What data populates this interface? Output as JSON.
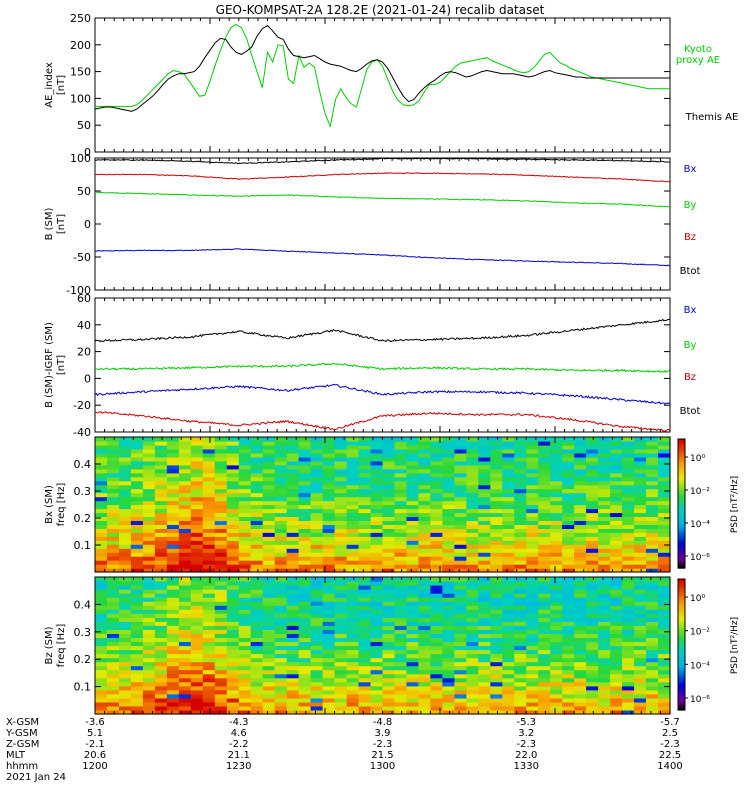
{
  "title": "GEO-KOMPSAT-2A 128.2E (2021-01-24) recalib dataset",
  "colors": {
    "black": "#000000",
    "green": "#00cc00",
    "red": "#cc0000",
    "blue": "#0000cc"
  },
  "chart_data": [
    {
      "type": "line",
      "ylabel": [
        "AE_index",
        "[nT]"
      ],
      "ylim": [
        0,
        250
      ],
      "yticks": [
        0,
        50,
        100,
        150,
        200,
        250
      ],
      "x": [
        0,
        6,
        12,
        18,
        24,
        30,
        36,
        42,
        48,
        54,
        60,
        66,
        72,
        78,
        84,
        90,
        96,
        102,
        108,
        114,
        120,
        126,
        132,
        138,
        144,
        150,
        156,
        162,
        168,
        174,
        180,
        186,
        192,
        198,
        204,
        210,
        216,
        222,
        228,
        234,
        240,
        246,
        252,
        258,
        264,
        270,
        276,
        282,
        288,
        294,
        300,
        306,
        312,
        318,
        324,
        330,
        336,
        342,
        348,
        354,
        360,
        366,
        372,
        378,
        384,
        390,
        396,
        402,
        408,
        414,
        420,
        426,
        432,
        438,
        444,
        450,
        456,
        462,
        468,
        474,
        480,
        486,
        492,
        498,
        504,
        510,
        516,
        522,
        528,
        534,
        540,
        546,
        552,
        558,
        564,
        570,
        576,
        582,
        588,
        594,
        600,
        606,
        612,
        618,
        624,
        630,
        636,
        642,
        648,
        654,
        660
      ],
      "series": [
        {
          "name": "Kyoto proxy AE",
          "color": "#00cc00",
          "label_lines": [
            "Kyoto",
            "proxy AE"
          ],
          "values": [
            85,
            85,
            85,
            85,
            85,
            85,
            85,
            85,
            88,
            96,
            106,
            116,
            126,
            136,
            146,
            152,
            150,
            146,
            132,
            118,
            104,
            106,
            132,
            162,
            190,
            214,
            232,
            238,
            232,
            212,
            180,
            150,
            120,
            186,
            168,
            200,
            198,
            136,
            128,
            180,
            158,
            166,
            158,
            112,
            72,
            48,
            98,
            118,
            102,
            90,
            84,
            118,
            154,
            168,
            172,
            160,
            136,
            112,
            96,
            88,
            86,
            88,
            96,
            112,
            126,
            126,
            130,
            140,
            150,
            160,
            166,
            168,
            170,
            172,
            174,
            176,
            170,
            166,
            162,
            158,
            154,
            150,
            148,
            150,
            158,
            170,
            182,
            186,
            176,
            166,
            162,
            156,
            152,
            148,
            144,
            140,
            138,
            136,
            134,
            132,
            130,
            128,
            126,
            124,
            122,
            120,
            118,
            118,
            118,
            118,
            118
          ]
        },
        {
          "name": "Themis AE",
          "color": "#000000",
          "label_lines": [
            "Themis AE"
          ],
          "values": [
            80,
            82,
            84,
            84,
            82,
            80,
            78,
            76,
            80,
            88,
            96,
            104,
            114,
            126,
            136,
            142,
            146,
            146,
            148,
            150,
            160,
            176,
            190,
            204,
            212,
            210,
            196,
            186,
            182,
            188,
            196,
            216,
            230,
            236,
            226,
            214,
            210,
            192,
            180,
            178,
            176,
            178,
            180,
            174,
            168,
            164,
            162,
            160,
            156,
            152,
            150,
            156,
            164,
            170,
            172,
            168,
            156,
            138,
            120,
            104,
            94,
            98,
            110,
            120,
            128,
            134,
            142,
            148,
            150,
            148,
            144,
            140,
            142,
            146,
            150,
            152,
            150,
            148,
            146,
            146,
            146,
            144,
            142,
            140,
            142,
            146,
            150,
            152,
            148,
            146,
            144,
            142,
            140,
            140,
            138,
            138,
            138,
            138,
            138,
            138,
            138,
            138,
            138,
            138,
            138,
            138,
            138,
            138,
            138,
            138,
            138
          ]
        }
      ]
    },
    {
      "type": "line",
      "ylabel": [
        "B (SM)",
        "[nT]"
      ],
      "ylim": [
        -100,
        100
      ],
      "yticks": [
        -100,
        -50,
        0,
        50,
        100
      ],
      "x": [
        0,
        55,
        110,
        165,
        220,
        275,
        330,
        385,
        440,
        495,
        550,
        605,
        660
      ],
      "series": [
        {
          "name": "Bx",
          "color": "#0000cc",
          "values": [
            -41,
            -40,
            -40,
            -38,
            -41,
            -44,
            -47,
            -51,
            -54,
            -56,
            -58,
            -60,
            -63
          ]
        },
        {
          "name": "By",
          "color": "#00cc00",
          "values": [
            48,
            46,
            44,
            42,
            44,
            41,
            39,
            38,
            37,
            35,
            32,
            30,
            26
          ]
        },
        {
          "name": "Bz",
          "color": "#cc0000",
          "values": [
            75,
            75,
            73,
            68,
            71,
            75,
            77,
            77,
            76,
            74,
            71,
            68,
            64
          ]
        },
        {
          "name": "Btot",
          "color": "#000000",
          "values": [
            97,
            97,
            95,
            92,
            94,
            97,
            99,
            99,
            99,
            98,
            97,
            96,
            94
          ]
        }
      ]
    },
    {
      "type": "line",
      "ylabel": [
        "B (SM)-IGRF (SM)",
        "[nT]"
      ],
      "ylim": [
        -40,
        60
      ],
      "yticks": [
        -40,
        -20,
        0,
        20,
        40,
        60
      ],
      "x": [
        0,
        55,
        110,
        165,
        220,
        275,
        330,
        385,
        440,
        495,
        550,
        605,
        660
      ],
      "series": [
        {
          "name": "Bx",
          "color": "#0000cc",
          "values": [
            -12,
            -10,
            -8,
            -6,
            -9,
            -5,
            -12,
            -10,
            -10,
            -11,
            -13,
            -16,
            -19
          ]
        },
        {
          "name": "By",
          "color": "#00cc00",
          "values": [
            7,
            7,
            8,
            9,
            9,
            11,
            7,
            8,
            7,
            7,
            6,
            6,
            5
          ]
        },
        {
          "name": "Bz",
          "color": "#cc0000",
          "values": [
            -25,
            -28,
            -32,
            -35,
            -32,
            -38,
            -28,
            -26,
            -27,
            -27,
            -31,
            -36,
            -39
          ]
        },
        {
          "name": "Btot",
          "color": "#000000",
          "values": [
            28,
            29,
            31,
            35,
            30,
            36,
            28,
            29,
            30,
            32,
            36,
            40,
            44
          ]
        }
      ]
    },
    {
      "type": "heatmap",
      "name": "Bx (SM)",
      "ylabel": [
        "Bx (SM)",
        "freq [Hz]"
      ],
      "ylim": [
        0,
        0.5
      ],
      "yticks": [
        0.1,
        0.2,
        0.3,
        0.4
      ],
      "colorbar_label": "PSD [nT²/Hz]",
      "colorbar_ticks": [
        "10⁰",
        "10⁻²",
        "10⁻⁴",
        "10⁻⁶"
      ]
    },
    {
      "type": "heatmap",
      "name": "Bz (SM)",
      "ylabel": [
        "Bz (SM)",
        "freq [Hz]"
      ],
      "ylim": [
        0,
        0.5
      ],
      "yticks": [
        0.1,
        0.2,
        0.3,
        0.4
      ],
      "colorbar_label": "PSD [nT²/Hz]",
      "colorbar_ticks": [
        "10⁰",
        "10⁻²",
        "10⁻⁴",
        "10⁻⁶"
      ]
    }
  ],
  "ephemeris": {
    "labels": [
      "X-GSM",
      "Y-GSM",
      "Z-GSM",
      "MLT",
      "hhmm",
      "2021 Jan 24"
    ],
    "columns": [
      [
        "-3.6",
        "5.1",
        "-2.1",
        "20.6",
        "1200"
      ],
      [
        "-4.3",
        "4.6",
        "-2.2",
        "21.1",
        "1230"
      ],
      [
        "-4.8",
        "3.9",
        "-2.3",
        "21.5",
        "1300"
      ],
      [
        "-5.3",
        "3.2",
        "-2.3",
        "22.0",
        "1330"
      ],
      [
        "-5.7",
        "2.5",
        "-2.3",
        "22.5",
        "1400"
      ]
    ]
  }
}
